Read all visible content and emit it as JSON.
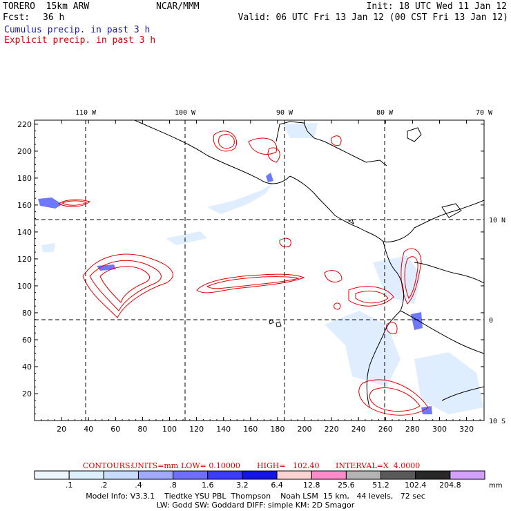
{
  "header": {
    "model": "TORERO  15km ARW",
    "org": "NCAR/MMM",
    "init": "Init: 18 UTC Wed 11 Jan 12",
    "fcst_label": "Fcst:",
    "fcst_value": "36 h",
    "valid": "Valid: 06 UTC Fri 13 Jan 12 (00 CST Fri 13 Jan 12)",
    "cumulus": "Cumulus precip. in past 3 h",
    "explicit": "Explicit precip. in past 3 h"
  },
  "axes": {
    "x_ticks": [
      "20",
      "40",
      "60",
      "80",
      "100",
      "120",
      "140",
      "160",
      "180",
      "200",
      "220",
      "240",
      "260",
      "280",
      "300",
      "320"
    ],
    "y_ticks": [
      "20",
      "40",
      "60",
      "80",
      "100",
      "120",
      "140",
      "160",
      "180",
      "200",
      "220"
    ],
    "lon_labels": [
      "110 W",
      "100 W",
      "90 W",
      "80 W",
      "70 W"
    ],
    "lat_labels": [
      "10 N",
      "0",
      "10 S"
    ]
  },
  "contours": {
    "label": "CONTOURS:",
    "units": "UNITS=mm",
    "low": "LOW= 0.10000",
    "high": "HIGH=   102.40",
    "interval": "INTERVAL=X  4.0000"
  },
  "colorbar": {
    "labels": [
      ".1",
      ".2",
      ".4",
      ".8",
      "1.6",
      "3.2",
      "6.4",
      "12.8",
      "25.6",
      "51.2",
      "102.4",
      "204.8"
    ],
    "unit": "mm",
    "colors": [
      "#ffffff",
      "#ffffff",
      "#ecf6ff",
      "#dcf0ff",
      "#c8dcff",
      "#a0aaff",
      "#6e6eff",
      "#3c3cff",
      "#1414e6",
      "#ffd2d2",
      "#ff8cc8",
      "#b4b4b4",
      "#5a5a5a",
      "#282828",
      "#d2a0ff"
    ]
  },
  "info": {
    "line1": "Model Info: V3.3.1    Tiedtke YSU PBL  Thompson    Noah LSM  15 km,   44 levels,   72 sec",
    "line2": "LW: Godd SW: Goddard DIFF: simple KM: 2D Smagor"
  }
}
